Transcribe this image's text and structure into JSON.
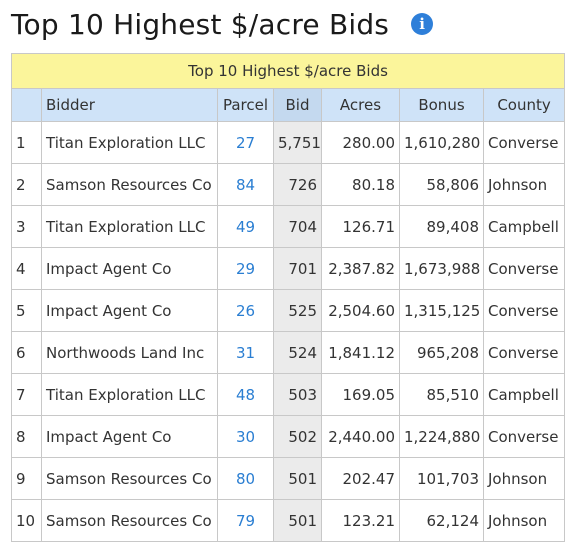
{
  "page": {
    "title": "Top 10 Highest $/acre Bids",
    "info_icon": "i"
  },
  "table": {
    "caption": "Top 10 Highest $/acre Bids",
    "headers": {
      "rank": "",
      "bidder": "Bidder",
      "parcel": "Parcel",
      "bid": "Bid",
      "acres": "Acres",
      "bonus": "Bonus",
      "county": "County"
    },
    "rows": [
      {
        "rank": "1",
        "bidder": "Titan Exploration LLC",
        "parcel": "27",
        "bid": "5,751",
        "acres": "280.00",
        "bonus": "1,610,280",
        "county": "Converse"
      },
      {
        "rank": "2",
        "bidder": "Samson Resources Co",
        "parcel": "84",
        "bid": "726",
        "acres": "80.18",
        "bonus": "58,806",
        "county": "Johnson"
      },
      {
        "rank": "3",
        "bidder": "Titan Exploration LLC",
        "parcel": "49",
        "bid": "704",
        "acres": "126.71",
        "bonus": "89,408",
        "county": "Campbell"
      },
      {
        "rank": "4",
        "bidder": "Impact Agent Co",
        "parcel": "29",
        "bid": "701",
        "acres": "2,387.82",
        "bonus": "1,673,988",
        "county": "Converse"
      },
      {
        "rank": "5",
        "bidder": "Impact Agent Co",
        "parcel": "26",
        "bid": "525",
        "acres": "2,504.60",
        "bonus": "1,315,125",
        "county": "Converse"
      },
      {
        "rank": "6",
        "bidder": "Northwoods Land Inc",
        "parcel": "31",
        "bid": "524",
        "acres": "1,841.12",
        "bonus": "965,208",
        "county": "Converse"
      },
      {
        "rank": "7",
        "bidder": "Titan Exploration LLC",
        "parcel": "48",
        "bid": "503",
        "acres": "169.05",
        "bonus": "85,510",
        "county": "Campbell"
      },
      {
        "rank": "8",
        "bidder": "Impact Agent Co",
        "parcel": "30",
        "bid": "502",
        "acres": "2,440.00",
        "bonus": "1,224,880",
        "county": "Converse"
      },
      {
        "rank": "9",
        "bidder": "Samson Resources Co",
        "parcel": "80",
        "bid": "501",
        "acres": "202.47",
        "bonus": "101,703",
        "county": "Johnson"
      },
      {
        "rank": "10",
        "bidder": "Samson Resources Co",
        "parcel": "79",
        "bid": "501",
        "acres": "123.21",
        "bonus": "62,124",
        "county": "Johnson"
      }
    ]
  },
  "colors": {
    "caption_bg": "#fbf59b",
    "header_bg": "#cfe3f8",
    "bid_column_bg": "#ebebeb",
    "link": "#2a7ed2",
    "info_icon": "#2e7fd9"
  }
}
